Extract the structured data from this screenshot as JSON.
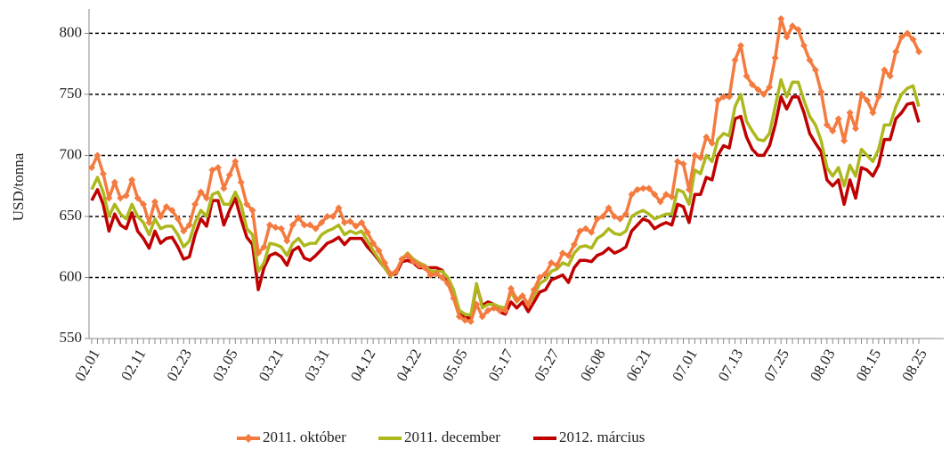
{
  "chart_data": {
    "type": "line",
    "y_label": "USD/tonna",
    "categories": [
      "02.01",
      null,
      null,
      null,
      null,
      null,
      null,
      null,
      "02.11",
      null,
      null,
      null,
      null,
      null,
      null,
      null,
      "02.23",
      null,
      null,
      null,
      null,
      null,
      null,
      null,
      "03.05",
      null,
      null,
      null,
      null,
      null,
      null,
      null,
      "03.21",
      null,
      null,
      null,
      null,
      null,
      null,
      null,
      "03.31",
      null,
      null,
      null,
      null,
      null,
      null,
      null,
      "04.12",
      null,
      null,
      null,
      null,
      null,
      null,
      null,
      "04.22",
      null,
      null,
      null,
      null,
      null,
      null,
      null,
      "05.05",
      null,
      null,
      null,
      null,
      null,
      null,
      null,
      "05.17",
      null,
      null,
      null,
      null,
      null,
      null,
      null,
      "05.27",
      null,
      null,
      null,
      null,
      null,
      null,
      null,
      "06.08",
      null,
      null,
      null,
      null,
      null,
      null,
      null,
      "06.21",
      null,
      null,
      null,
      null,
      null,
      null,
      null,
      "07.01",
      null,
      null,
      null,
      null,
      null,
      null,
      null,
      "07.13",
      null,
      null,
      null,
      null,
      null,
      null,
      null,
      "07.25",
      null,
      null,
      null,
      null,
      null,
      null,
      null,
      "08.03",
      null,
      null,
      null,
      null,
      null,
      null,
      null,
      "08.15",
      null,
      null,
      null,
      null,
      null,
      null,
      null,
      "08.25"
    ],
    "series": [
      {
        "name": "2011. október",
        "color": "#f47b3f",
        "marker": "diamond",
        "values": [
          690,
          700,
          685,
          665,
          678,
          665,
          667,
          680,
          665,
          660,
          645,
          662,
          650,
          658,
          655,
          648,
          638,
          643,
          660,
          670,
          665,
          688,
          690,
          673,
          684,
          695,
          678,
          660,
          655,
          620,
          625,
          643,
          641,
          640,
          630,
          643,
          649,
          643,
          643,
          640,
          645,
          650,
          650,
          657,
          645,
          646,
          642,
          645,
          637,
          628,
          622,
          612,
          603,
          605,
          615,
          618,
          613,
          610,
          608,
          602,
          603,
          600,
          595,
          583,
          568,
          565,
          564,
          578,
          568,
          573,
          575,
          573,
          573,
          591,
          582,
          585,
          578,
          590,
          600,
          603,
          612,
          610,
          620,
          618,
          627,
          638,
          640,
          637,
          648,
          650,
          657,
          650,
          648,
          652,
          668,
          672,
          673,
          673,
          668,
          662,
          668,
          666,
          695,
          693,
          672,
          700,
          698,
          715,
          710,
          745,
          748,
          748,
          778,
          790,
          765,
          758,
          754,
          750,
          756,
          780,
          812,
          797,
          806,
          803,
          790,
          778,
          770,
          752,
          725,
          720,
          730,
          712,
          735,
          722,
          750,
          745,
          735,
          748,
          770,
          765,
          785,
          797,
          800,
          795,
          785
        ]
      },
      {
        "name": "2011. december",
        "color": "#adb81e",
        "values": [
          672,
          682,
          670,
          650,
          660,
          652,
          648,
          660,
          650,
          645,
          635,
          648,
          640,
          642,
          642,
          635,
          625,
          630,
          645,
          655,
          650,
          668,
          670,
          660,
          660,
          670,
          660,
          640,
          635,
          605,
          612,
          628,
          627,
          625,
          618,
          628,
          632,
          626,
          628,
          628,
          635,
          638,
          640,
          643,
          635,
          638,
          636,
          638,
          630,
          622,
          615,
          608,
          601,
          605,
          615,
          620,
          615,
          612,
          610,
          605,
          605,
          605,
          600,
          590,
          573,
          570,
          569,
          595,
          575,
          578,
          578,
          576,
          575,
          588,
          580,
          585,
          578,
          585,
          595,
          598,
          605,
          607,
          612,
          610,
          620,
          625,
          626,
          624,
          632,
          635,
          640,
          636,
          635,
          638,
          650,
          653,
          655,
          652,
          648,
          650,
          652,
          652,
          672,
          670,
          660,
          688,
          685,
          700,
          695,
          713,
          718,
          716,
          740,
          750,
          728,
          720,
          713,
          712,
          718,
          740,
          762,
          748,
          760,
          760,
          745,
          732,
          725,
          712,
          690,
          683,
          690,
          675,
          692,
          683,
          705,
          700,
          695,
          705,
          725,
          725,
          740,
          750,
          755,
          757,
          740
        ]
      },
      {
        "name": "2012. március",
        "color": "#c00000",
        "values": [
          663,
          672,
          660,
          638,
          652,
          643,
          640,
          653,
          638,
          632,
          624,
          638,
          628,
          632,
          633,
          625,
          615,
          617,
          635,
          648,
          642,
          663,
          663,
          643,
          655,
          665,
          648,
          633,
          627,
          590,
          608,
          618,
          620,
          617,
          610,
          622,
          625,
          616,
          614,
          618,
          623,
          628,
          630,
          633,
          627,
          632,
          632,
          632,
          625,
          620,
          614,
          608,
          602,
          603,
          613,
          614,
          612,
          608,
          608,
          608,
          608,
          606,
          598,
          585,
          570,
          567,
          567,
          594,
          577,
          580,
          578,
          572,
          570,
          580,
          575,
          580,
          572,
          580,
          588,
          590,
          598,
          600,
          602,
          596,
          608,
          614,
          614,
          613,
          618,
          620,
          624,
          620,
          622,
          625,
          638,
          643,
          648,
          646,
          640,
          643,
          645,
          643,
          660,
          658,
          645,
          668,
          668,
          682,
          680,
          700,
          708,
          706,
          730,
          732,
          715,
          705,
          700,
          700,
          708,
          725,
          748,
          738,
          748,
          748,
          735,
          718,
          710,
          703,
          680,
          675,
          680,
          660,
          680,
          665,
          690,
          688,
          683,
          692,
          713,
          713,
          730,
          735,
          742,
          743,
          727
        ]
      }
    ],
    "ylim": [
      550,
      820
    ],
    "yticks": [
      550,
      600,
      650,
      700,
      750,
      800
    ],
    "grid": true,
    "grid_style": "dashed",
    "legend": "bottom"
  }
}
